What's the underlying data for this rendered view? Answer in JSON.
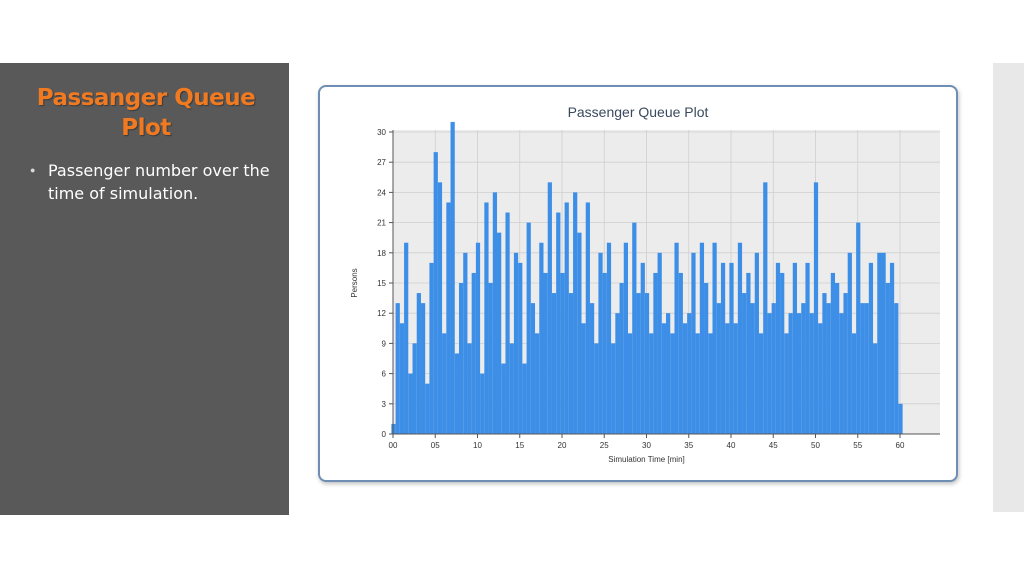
{
  "slide": {
    "title": "Passanger Queue Plot",
    "bullet_text": "Passenger number over the time of simulation."
  },
  "colors": {
    "accent_title": "#f07a21",
    "panel_bg": "#595959",
    "bar_fill": "#3d8ee6",
    "frame_border": "#6e8fb3"
  },
  "chart_data": {
    "type": "bar",
    "title": "Passenger Queue Plot",
    "xlabel": "Simulation Time [min]",
    "ylabel": "Persons",
    "xlim": [
      0,
      60
    ],
    "ylim": [
      0,
      30
    ],
    "grid": true,
    "xticks": [
      "00",
      "05",
      "10",
      "15",
      "20",
      "25",
      "30",
      "35",
      "40",
      "45",
      "50",
      "55",
      "60"
    ],
    "yticks": [
      "0",
      "3",
      "6",
      "9",
      "12",
      "15",
      "18",
      "21",
      "24",
      "27",
      "30"
    ],
    "x": [
      0,
      0.5,
      1,
      1.5,
      2,
      2.5,
      3,
      3.5,
      4,
      4.5,
      5,
      5.5,
      6,
      6.5,
      7,
      7.5,
      8,
      8.5,
      9,
      9.5,
      10,
      10.5,
      11,
      11.5,
      12,
      12.5,
      13,
      13.5,
      14,
      14.5,
      15,
      15.5,
      16,
      16.5,
      17,
      17.5,
      18,
      18.5,
      19,
      19.5,
      20,
      20.5,
      21,
      21.5,
      22,
      22.5,
      23,
      23.5,
      24,
      24.5,
      25,
      25.5,
      26,
      26.5,
      27,
      27.5,
      28,
      28.5,
      29,
      29.5,
      30,
      30.5,
      31,
      31.5,
      32,
      32.5,
      33,
      33.5,
      34,
      34.5,
      35,
      35.5,
      36,
      36.5,
      37,
      37.5,
      38,
      38.5,
      39,
      39.5,
      40,
      40.5,
      41,
      41.5,
      42,
      42.5,
      43,
      43.5,
      44,
      44.5,
      45,
      45.5,
      46,
      46.5,
      47,
      47.5,
      48,
      48.5,
      49,
      49.5,
      50,
      50.5,
      51,
      51.5,
      52,
      52.5,
      53,
      53.5,
      54,
      54.5,
      55,
      55.5,
      56,
      56.5,
      57,
      57.5,
      58,
      58.5,
      59,
      59.5,
      60
    ],
    "values": [
      1,
      13,
      11,
      19,
      6,
      9,
      14,
      13,
      5,
      17,
      28,
      25,
      10,
      23,
      31,
      8,
      15,
      18,
      9,
      16,
      19,
      6,
      23,
      15,
      24,
      20,
      7,
      22,
      9,
      18,
      17,
      7,
      21,
      13,
      10,
      19,
      16,
      25,
      14,
      22,
      16,
      23,
      14,
      24,
      20,
      11,
      23,
      13,
      9,
      18,
      16,
      19,
      9,
      12,
      15,
      19,
      10,
      21,
      14,
      17,
      14,
      10,
      16,
      18,
      11,
      12,
      10,
      19,
      16,
      11,
      12,
      18,
      10,
      19,
      15,
      10,
      19,
      13,
      17,
      11,
      17,
      11,
      19,
      14,
      16,
      13,
      18,
      10,
      25,
      12,
      13,
      17,
      16,
      10,
      12,
      17,
      12,
      13,
      17,
      12,
      25,
      11,
      14,
      13,
      16,
      15,
      12,
      14,
      18,
      10,
      21,
      13,
      13,
      17,
      9,
      18,
      18,
      15,
      17,
      13,
      3
    ]
  }
}
